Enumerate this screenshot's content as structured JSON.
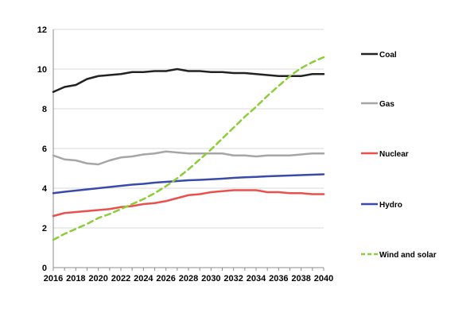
{
  "chart_data": {
    "type": "line",
    "title": "",
    "xlabel": "",
    "ylabel": "",
    "x": [
      2016,
      2017,
      2018,
      2019,
      2020,
      2021,
      2022,
      2023,
      2024,
      2025,
      2026,
      2027,
      2028,
      2029,
      2030,
      2031,
      2032,
      2033,
      2034,
      2035,
      2036,
      2037,
      2038,
      2039,
      2040
    ],
    "x_tick_labels": [
      "2016",
      "2018",
      "2020",
      "2022",
      "2024",
      "2026",
      "2028",
      "2030",
      "2032",
      "2034",
      "2036",
      "2038",
      "2040"
    ],
    "y_tick_labels": [
      "0",
      "2",
      "4",
      "6",
      "8",
      "10",
      "12"
    ],
    "ylim": [
      0,
      12
    ],
    "xlim": [
      2016,
      2040
    ],
    "grid": "horizontal",
    "legend_placement": "right",
    "series": [
      {
        "name": "Coal",
        "color": "#222222",
        "dashed": false,
        "values": [
          8.85,
          9.1,
          9.2,
          9.5,
          9.65,
          9.7,
          9.75,
          9.85,
          9.85,
          9.9,
          9.9,
          10.0,
          9.9,
          9.9,
          9.85,
          9.85,
          9.8,
          9.8,
          9.75,
          9.7,
          9.65,
          9.65,
          9.65,
          9.75,
          9.75
        ]
      },
      {
        "name": "Gas",
        "color": "#a6a6a6",
        "dashed": false,
        "values": [
          5.65,
          5.45,
          5.4,
          5.25,
          5.2,
          5.4,
          5.55,
          5.6,
          5.7,
          5.75,
          5.85,
          5.8,
          5.75,
          5.75,
          5.75,
          5.75,
          5.65,
          5.65,
          5.6,
          5.65,
          5.65,
          5.65,
          5.7,
          5.75,
          5.75
        ]
      },
      {
        "name": "Nuclear",
        "color": "#e8514c",
        "dashed": false,
        "values": [
          2.6,
          2.75,
          2.8,
          2.85,
          2.9,
          2.95,
          3.05,
          3.1,
          3.2,
          3.25,
          3.35,
          3.5,
          3.65,
          3.7,
          3.8,
          3.85,
          3.9,
          3.9,
          3.9,
          3.8,
          3.8,
          3.75,
          3.75,
          3.7,
          3.7
        ]
      },
      {
        "name": "Hydro",
        "color": "#3a4aa8",
        "dashed": false,
        "values": [
          3.75,
          3.82,
          3.88,
          3.94,
          4.0,
          4.06,
          4.12,
          4.18,
          4.22,
          4.28,
          4.32,
          4.36,
          4.4,
          4.42,
          4.45,
          4.48,
          4.52,
          4.55,
          4.57,
          4.6,
          4.62,
          4.64,
          4.66,
          4.68,
          4.7
        ]
      },
      {
        "name": "Wind and solar",
        "color": "#8ccd3a",
        "dashed": true,
        "values": [
          1.4,
          1.7,
          1.95,
          2.2,
          2.5,
          2.7,
          2.95,
          3.2,
          3.45,
          3.75,
          4.1,
          4.5,
          4.95,
          5.45,
          5.95,
          6.5,
          7.05,
          7.6,
          8.1,
          8.65,
          9.15,
          9.65,
          10.05,
          10.35,
          10.6
        ]
      }
    ]
  }
}
